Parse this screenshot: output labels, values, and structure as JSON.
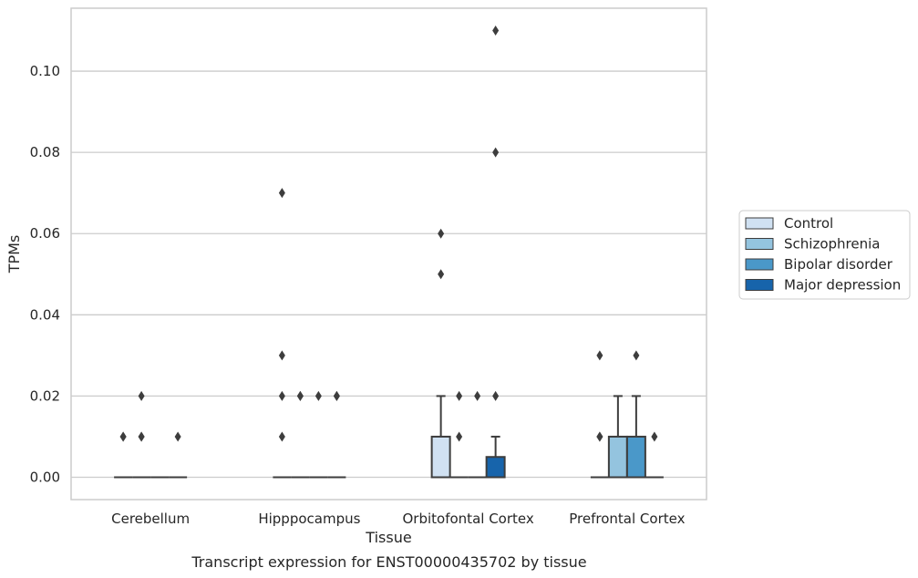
{
  "chart_data": {
    "type": "box",
    "title": "Transcript expression for ENST00000435702 by tissue",
    "xlabel": "Tissue",
    "ylabel": "TPMs",
    "categories": [
      "Cerebellum",
      "Hipppocampus",
      "Orbitofontal Cortex",
      "Prefrontal Cortex"
    ],
    "ylim": [
      -0.0055,
      0.1155
    ],
    "yticks": [
      "0.00",
      "0.02",
      "0.04",
      "0.06",
      "0.08",
      "0.10"
    ],
    "grid": true,
    "legend_position": "right",
    "series": [
      {
        "name": "Control",
        "color": "#d0e1f2",
        "boxes": [
          {
            "q1": 0,
            "median": 0,
            "q3": 0,
            "whisker_low": 0,
            "whisker_high": 0,
            "outliers": [
              0.01,
              0.01
            ]
          },
          {
            "q1": 0,
            "median": 0,
            "q3": 0,
            "whisker_low": 0,
            "whisker_high": 0,
            "outliers": [
              0.07,
              0.03,
              0.02,
              0.01
            ]
          },
          {
            "q1": 0,
            "median": 0,
            "q3": 0.01,
            "whisker_low": 0,
            "whisker_high": 0.02,
            "outliers": [
              0.06,
              0.05
            ]
          },
          {
            "q1": 0,
            "median": 0,
            "q3": 0,
            "whisker_low": 0,
            "whisker_high": 0,
            "outliers": [
              0.03,
              0.01,
              0.01
            ]
          }
        ]
      },
      {
        "name": "Schizophrenia",
        "color": "#94c4df",
        "boxes": [
          {
            "q1": 0,
            "median": 0,
            "q3": 0,
            "whisker_low": 0,
            "whisker_high": 0,
            "outliers": [
              0.02,
              0.01,
              0.01
            ]
          },
          {
            "q1": 0,
            "median": 0,
            "q3": 0,
            "whisker_low": 0,
            "whisker_high": 0,
            "outliers": [
              0.02,
              0.02
            ]
          },
          {
            "q1": 0,
            "median": 0,
            "q3": 0,
            "whisker_low": 0,
            "whisker_high": 0,
            "outliers": [
              0.02,
              0.01
            ]
          },
          {
            "q1": 0,
            "median": 0,
            "q3": 0.01,
            "whisker_low": 0,
            "whisker_high": 0.02,
            "outliers": []
          }
        ]
      },
      {
        "name": "Bipolar disorder",
        "color": "#4a98c9",
        "boxes": [
          {
            "q1": 0,
            "median": 0,
            "q3": 0,
            "whisker_low": 0,
            "whisker_high": 0,
            "outliers": []
          },
          {
            "q1": 0,
            "median": 0,
            "q3": 0,
            "whisker_low": 0,
            "whisker_high": 0,
            "outliers": [
              0.02
            ]
          },
          {
            "q1": 0,
            "median": 0,
            "q3": 0,
            "whisker_low": 0,
            "whisker_high": 0,
            "outliers": [
              0.02
            ]
          },
          {
            "q1": 0,
            "median": 0,
            "q3": 0.01,
            "whisker_low": 0,
            "whisker_high": 0.02,
            "outliers": [
              0.03
            ]
          }
        ]
      },
      {
        "name": "Major depression",
        "color": "#1764ab",
        "boxes": [
          {
            "q1": 0,
            "median": 0,
            "q3": 0,
            "whisker_low": 0,
            "whisker_high": 0,
            "outliers": [
              0.01
            ]
          },
          {
            "q1": 0,
            "median": 0,
            "q3": 0,
            "whisker_low": 0,
            "whisker_high": 0,
            "outliers": [
              0.02,
              0.02
            ]
          },
          {
            "q1": 0,
            "median": 0,
            "q3": 0.005,
            "whisker_low": 0,
            "whisker_high": 0.01,
            "outliers": [
              0.11,
              0.08,
              0.02
            ]
          },
          {
            "q1": 0,
            "median": 0,
            "q3": 0,
            "whisker_low": 0,
            "whisker_high": 0,
            "outliers": [
              0.01
            ]
          }
        ]
      }
    ]
  }
}
